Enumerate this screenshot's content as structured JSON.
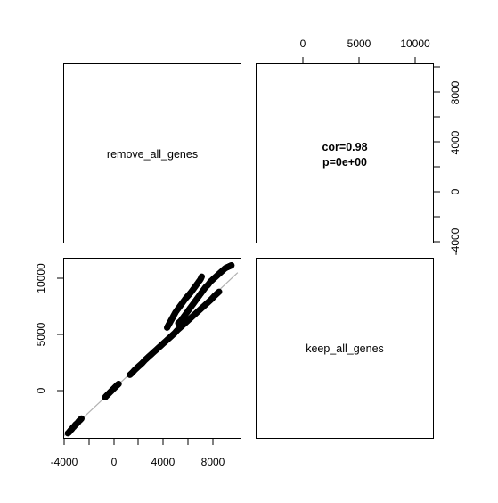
{
  "chart_data": {
    "type": "scatter",
    "layout": "pairs-matrix",
    "variables": [
      "remove_all_genes",
      "keep_all_genes"
    ],
    "correlation_text": {
      "cor": "cor=0.98",
      "p": "p=0e+00"
    },
    "axes": {
      "x": {
        "range": [
          -4000,
          10000
        ],
        "bottom_ticks": [
          "-4000",
          "0",
          "4000",
          "8000"
        ],
        "top_ticks": [
          "0",
          "5000",
          "10000"
        ]
      },
      "y": {
        "range": [
          -4000,
          12000
        ],
        "left_ticks": [
          "0",
          "5000",
          "10000"
        ],
        "right_ticks": [
          "-4000",
          "0",
          "4000",
          "8000"
        ]
      }
    },
    "series": [
      {
        "points_xy": [
          [
            -3700,
            -3800
          ],
          [
            -3600,
            -3700
          ],
          [
            -3500,
            -3550
          ],
          [
            -3400,
            -3450
          ],
          [
            -3300,
            -3300
          ],
          [
            -3200,
            -3200
          ],
          [
            -3100,
            -3050
          ],
          [
            -3000,
            -2950
          ],
          [
            -2900,
            -2850
          ],
          [
            -2800,
            -2700
          ],
          [
            -2700,
            -2600
          ],
          [
            -2600,
            -2480
          ],
          [
            -700,
            -600
          ],
          [
            -600,
            -480
          ],
          [
            -500,
            -370
          ],
          [
            -400,
            -260
          ],
          [
            -300,
            -150
          ],
          [
            -200,
            -40
          ],
          [
            -100,
            80
          ],
          [
            0,
            180
          ],
          [
            100,
            290
          ],
          [
            200,
            400
          ],
          [
            300,
            500
          ],
          [
            400,
            600
          ],
          [
            1300,
            1400
          ],
          [
            1500,
            1600
          ],
          [
            1700,
            1850
          ],
          [
            1900,
            2050
          ],
          [
            2100,
            2250
          ],
          [
            2300,
            2450
          ],
          [
            2500,
            2700
          ],
          [
            2700,
            2900
          ],
          [
            2900,
            3100
          ],
          [
            3100,
            3300
          ],
          [
            3300,
            3500
          ],
          [
            3500,
            3700
          ],
          [
            3700,
            3900
          ],
          [
            3900,
            4100
          ],
          [
            4100,
            4300
          ],
          [
            4300,
            4500
          ],
          [
            4500,
            4700
          ],
          [
            4700,
            4900
          ],
          [
            4900,
            5100
          ],
          [
            5100,
            5350
          ],
          [
            5300,
            5550
          ],
          [
            5500,
            5750
          ],
          [
            5700,
            5950
          ],
          [
            5900,
            6150
          ],
          [
            6100,
            6350
          ],
          [
            6300,
            6550
          ],
          [
            6500,
            6750
          ],
          [
            6700,
            6950
          ],
          [
            6900,
            7150
          ],
          [
            7100,
            7350
          ],
          [
            7300,
            7550
          ],
          [
            7500,
            7750
          ],
          [
            7700,
            7950
          ],
          [
            7900,
            8150
          ],
          [
            8100,
            8400
          ],
          [
            8300,
            8600
          ],
          [
            8500,
            8800
          ],
          [
            4300,
            5600
          ],
          [
            4400,
            5800
          ],
          [
            4500,
            6000
          ],
          [
            4600,
            6200
          ],
          [
            4700,
            6400
          ],
          [
            4800,
            6600
          ],
          [
            4900,
            6800
          ],
          [
            5000,
            7000
          ],
          [
            5200,
            7300
          ],
          [
            5400,
            7600
          ],
          [
            5600,
            7900
          ],
          [
            5800,
            8200
          ],
          [
            6000,
            8450
          ],
          [
            6200,
            8700
          ],
          [
            6400,
            9000
          ],
          [
            6600,
            9300
          ],
          [
            6800,
            9600
          ],
          [
            7000,
            9900
          ],
          [
            7100,
            10150
          ],
          [
            5200,
            6000
          ],
          [
            5400,
            6200
          ],
          [
            5600,
            6500
          ],
          [
            5800,
            6800
          ],
          [
            6000,
            7100
          ],
          [
            6200,
            7400
          ],
          [
            6400,
            7700
          ],
          [
            6600,
            8000
          ],
          [
            6800,
            8300
          ],
          [
            7000,
            8600
          ],
          [
            7200,
            8900
          ],
          [
            7400,
            9200
          ],
          [
            7600,
            9400
          ],
          [
            7800,
            9700
          ],
          [
            8000,
            9900
          ],
          [
            8200,
            10100
          ],
          [
            8400,
            10300
          ],
          [
            8600,
            10500
          ],
          [
            8800,
            10700
          ],
          [
            9000,
            10900
          ],
          [
            9200,
            11000
          ],
          [
            9400,
            11100
          ],
          [
            9500,
            11150
          ]
        ]
      }
    ],
    "fit_line": {
      "x": [
        -4000,
        10000
      ],
      "y": [
        -4000,
        10500
      ]
    },
    "grid": false
  }
}
